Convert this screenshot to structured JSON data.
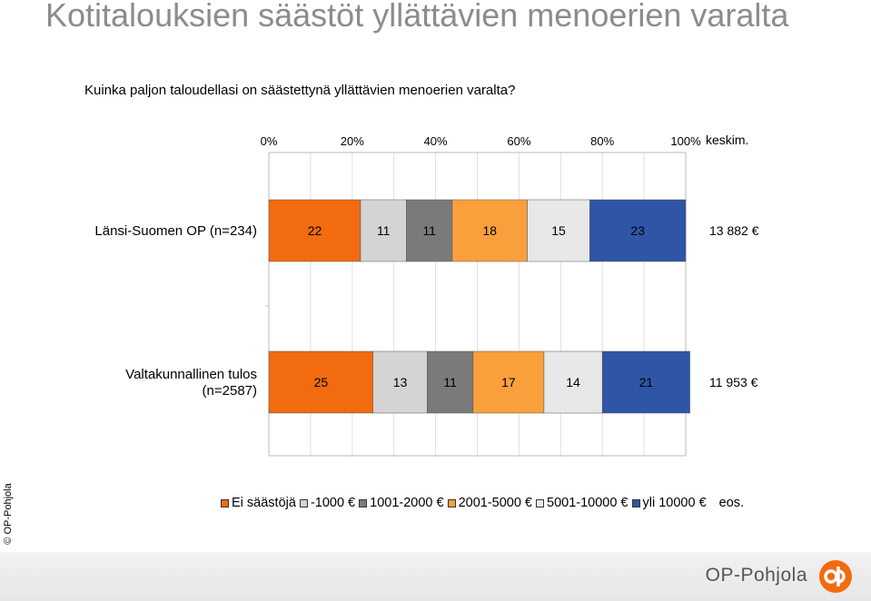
{
  "title": "Kotitalouksien säästöt yllättävien menoerien varalta",
  "question": "Kuinka paljon taloudellasi on säästettynä yllättävien menoerien varalta?",
  "copyright": "© OP-Pohjola",
  "brand": "OP-Pohjola",
  "chart_data": {
    "type": "bar",
    "stacked": true,
    "orientation": "horizontal",
    "percent_scale": true,
    "x_ticks": [
      "0%",
      "20%",
      "40%",
      "60%",
      "80%",
      "100%"
    ],
    "avg_header": "keskim.",
    "categories": [
      {
        "label_lines": [
          "Länsi-Suomen OP (n=234)"
        ],
        "avg": "13 882 €"
      },
      {
        "label_lines": [
          "Valtakunnallinen tulos",
          "(n=2587)"
        ],
        "avg": "11 953 €"
      }
    ],
    "series": [
      {
        "name": "Ei säästöjä",
        "color": "#f26b0f",
        "values": [
          22,
          25
        ]
      },
      {
        "name": "-1000 €",
        "color": "#d4d4d4",
        "values": [
          11,
          13
        ]
      },
      {
        "name": "1001-2000 €",
        "color": "#7a7a7a",
        "values": [
          11,
          11
        ]
      },
      {
        "name": "2001-5000 €",
        "color": "#f9a03c",
        "values": [
          18,
          17
        ]
      },
      {
        "name": "5001-10000 €",
        "color": "#e8e8e8",
        "values": [
          15,
          14
        ]
      },
      {
        "name": "yli 10000 €",
        "color": "#2f55a6",
        "values": [
          23,
          21
        ]
      },
      {
        "name": "eos.",
        "color": "#ffffff",
        "values": [
          0,
          0
        ]
      }
    ],
    "legend_position": "bottom",
    "grid": true
  }
}
